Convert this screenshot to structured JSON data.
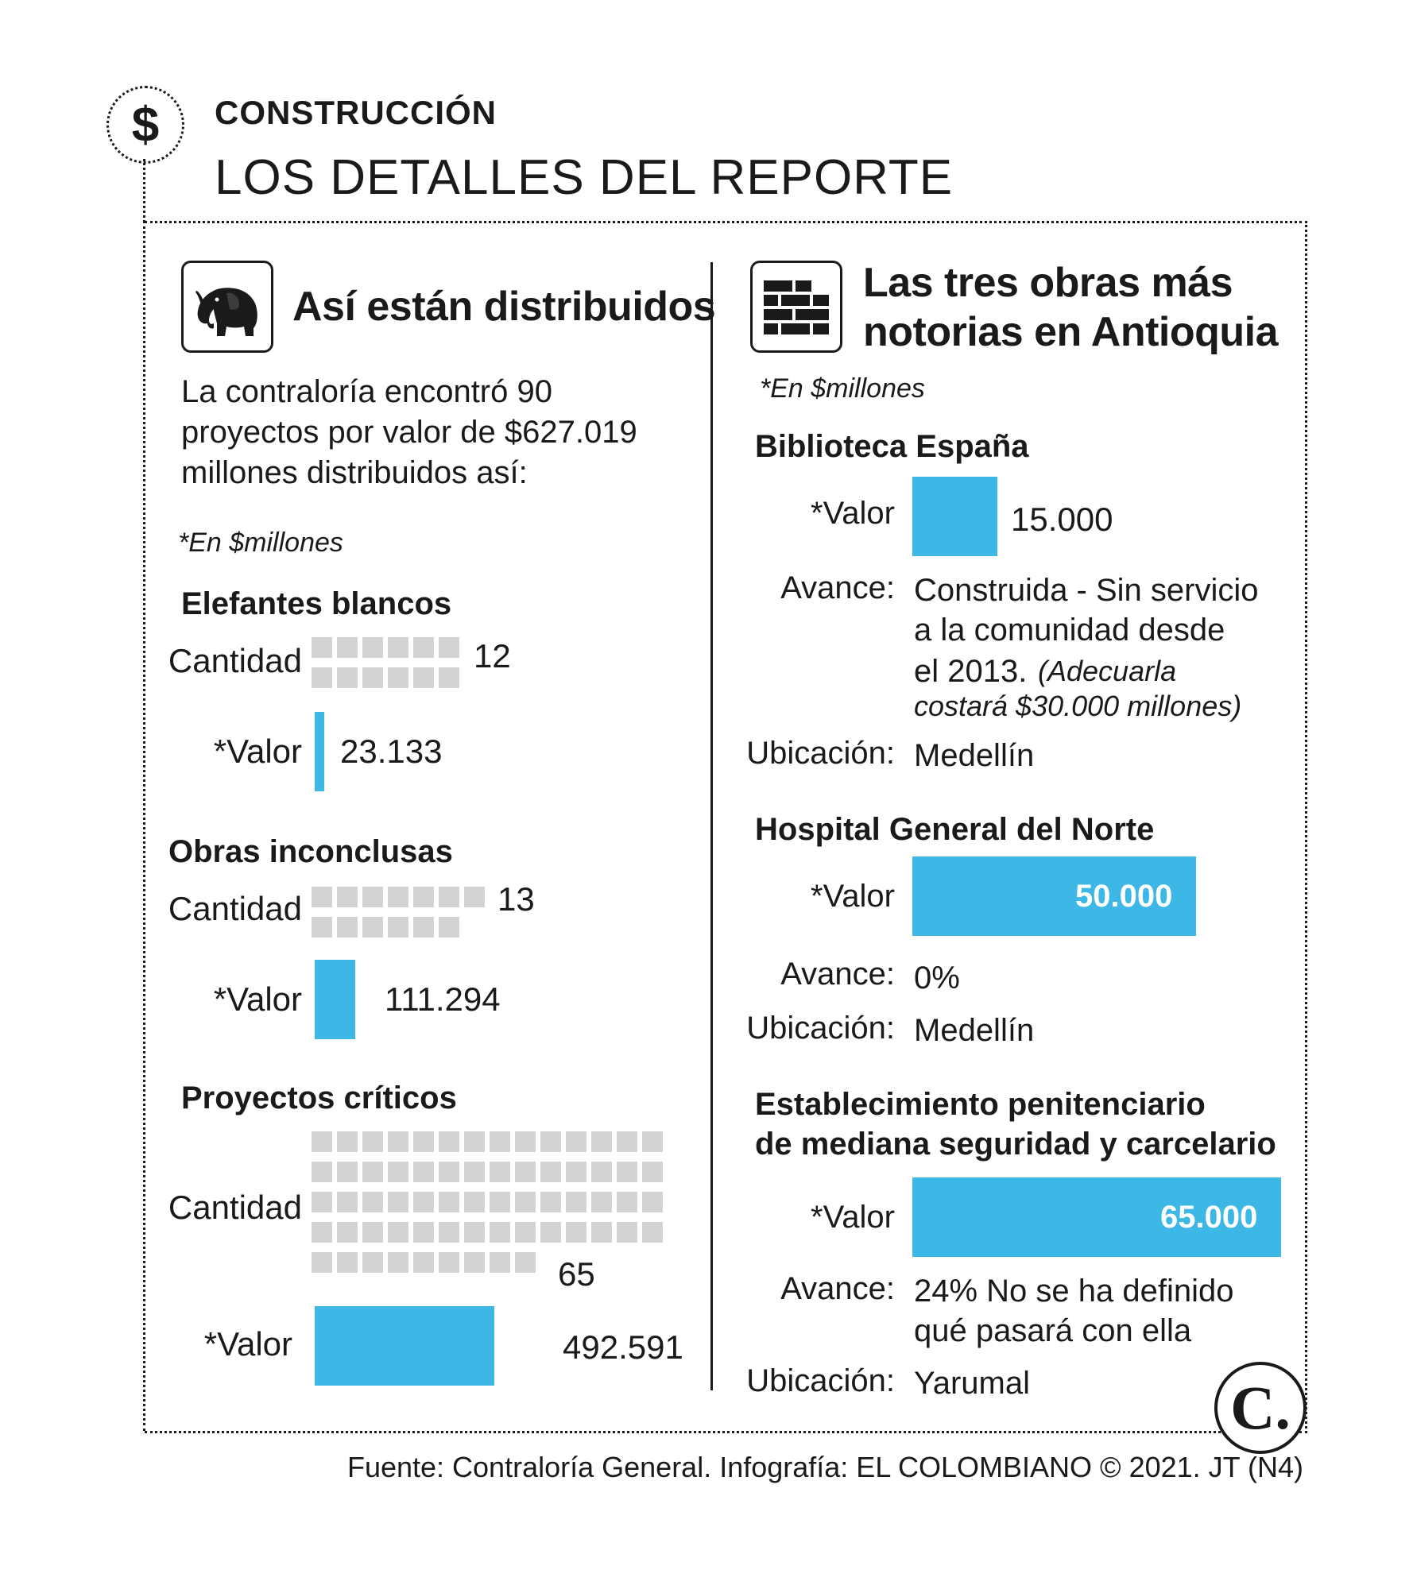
{
  "header": {
    "section": "CONSTRUCCIÓN",
    "headline": "LOS DETALLES DEL REPORTE",
    "dollar_symbol": "$"
  },
  "left_panel": {
    "icon": "elephant-icon",
    "title": "Así están distribuidos",
    "intro": "La contraloría encontró 90 proyectos por valor de $627.019 millones distribuidos así:",
    "unit_note": "*En $millones",
    "cantidad_label": "Cantidad",
    "valor_label": "*Valor"
  },
  "chart_data": {
    "type": "bar",
    "categories": [
      "Elefantes blancos",
      "Obras inconclusas",
      "Proyectos críticos"
    ],
    "series": [
      {
        "name": "Cantidad",
        "values": [
          12,
          13,
          65
        ]
      },
      {
        "name": "*Valor",
        "values": [
          23133,
          111294,
          492591
        ]
      }
    ],
    "value_labels": [
      "23.133",
      "111.294",
      "492.591"
    ],
    "count_labels": [
      "12",
      "13",
      "65"
    ],
    "colors": {
      "count_square": "#d3d3d3",
      "value_bar": "#3cb7e6"
    },
    "total_projects": 90,
    "total_value": "$627.019"
  },
  "right_panel": {
    "icon": "bricks-icon",
    "title_line1": "Las tres obras más",
    "title_line2": "notorias en Antioquia",
    "unit_note": "*En $millones",
    "labels": {
      "valor": "*Valor",
      "avance": "Avance:",
      "ubicacion": "Ubicación:"
    },
    "works": [
      {
        "name": "Biblioteca España",
        "value": 15000,
        "value_label": "15.000",
        "avance_line1": "Construida - Sin servicio",
        "avance_line2": "a la comunidad desde",
        "avance_line3": "el 2013.",
        "avance_note_line1": "(Adecuarla",
        "avance_note_line2": "costará $30.000 millones)",
        "ubicacion": "Medellín"
      },
      {
        "name": "Hospital General del Norte",
        "value": 50000,
        "value_label": "50.000",
        "avance_line1": "0%",
        "ubicacion": "Medellín"
      },
      {
        "name_line1": "Establecimiento penitenciario",
        "name_line2": "de mediana seguridad y carcelario",
        "value": 65000,
        "value_label": "65.000",
        "avance_line1": "24% No se ha definido",
        "avance_line2": "qué pasará con ella",
        "ubicacion": "Yarumal"
      }
    ]
  },
  "logo": {
    "letter": "C."
  },
  "footer": "Fuente: Contraloría General. Infografía: EL COLOMBIANO © 2021. JT (N4)"
}
